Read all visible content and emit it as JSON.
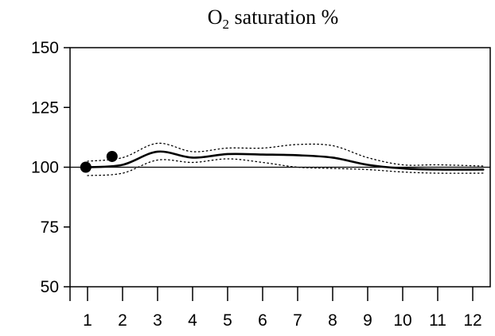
{
  "chart_data": {
    "type": "line",
    "title_main": "O",
    "title_sub": "2",
    "title_rest": " saturation %",
    "xlabel": "",
    "ylabel": "",
    "x_ticks": [
      "1",
      "2",
      "3",
      "4",
      "5",
      "6",
      "7",
      "8",
      "9",
      "10",
      "11",
      "12"
    ],
    "y_ticks": [
      150,
      125,
      100,
      75,
      50
    ],
    "xlim": [
      0.5,
      12.5
    ],
    "ylim": [
      50,
      150
    ],
    "reference_line": 100,
    "series": [
      {
        "style": "solid",
        "x": [
          1.0,
          2.0,
          3.0,
          4.0,
          5.0,
          6.0,
          7.0,
          8.0,
          9.0,
          10.0,
          11.0,
          12.3
        ],
        "y": [
          100.0,
          101.0,
          106.5,
          104.0,
          105.5,
          105.3,
          105.0,
          104.0,
          101.0,
          99.5,
          99.0,
          99.0
        ]
      },
      {
        "style": "dotted",
        "x": [
          1.0,
          2.0,
          3.0,
          4.0,
          5.0,
          6.0,
          7.0,
          8.0,
          9.0,
          10.0,
          11.0,
          12.3
        ],
        "y": [
          102.5,
          104.0,
          110.0,
          106.5,
          108.0,
          108.0,
          109.5,
          109.0,
          104.0,
          101.0,
          101.0,
          100.5
        ]
      },
      {
        "style": "dotted",
        "x": [
          1.0,
          2.0,
          3.0,
          4.0,
          5.0,
          6.0,
          7.0,
          8.0,
          9.0,
          10.0,
          11.0,
          12.3
        ],
        "y": [
          96.5,
          97.5,
          103.0,
          102.0,
          103.5,
          102.0,
          100.0,
          99.5,
          99.0,
          98.0,
          97.5,
          97.5
        ]
      }
    ],
    "points": [
      {
        "x": 0.95,
        "y": 100.0
      },
      {
        "x": 1.7,
        "y": 104.5
      }
    ],
    "grid": false,
    "legend": "none"
  }
}
